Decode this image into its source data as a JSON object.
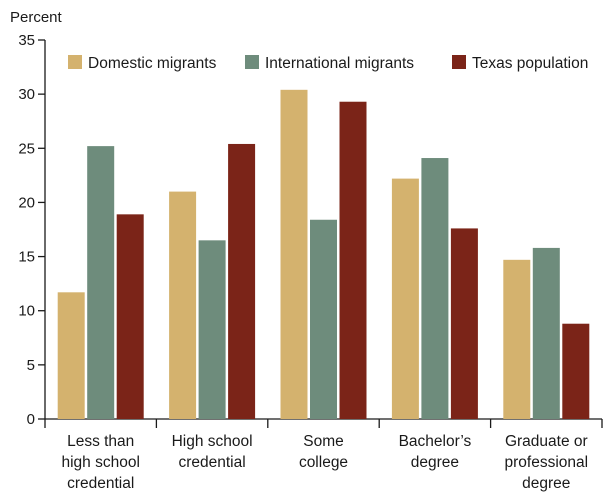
{
  "chart_data": {
    "type": "bar",
    "ylabel": "Percent",
    "ylim": [
      0,
      35
    ],
    "yticks": [
      0,
      5,
      10,
      15,
      20,
      25,
      30,
      35
    ],
    "grid": false,
    "legend_position": "top",
    "categories": [
      [
        "Less than",
        "high school",
        "credential"
      ],
      [
        "High school",
        "credential"
      ],
      [
        "Some",
        "college"
      ],
      [
        "Bachelor’s",
        "degree"
      ],
      [
        "Graduate or",
        "professional",
        "degree"
      ]
    ],
    "series": [
      {
        "name": "Domestic migrants",
        "color": "#d4b26e",
        "values": [
          11.7,
          21.0,
          30.4,
          22.2,
          14.7
        ]
      },
      {
        "name": "International migrants",
        "color": "#6e8c7c",
        "values": [
          25.2,
          16.5,
          18.4,
          24.1,
          15.8
        ]
      },
      {
        "name": "Texas population",
        "color": "#7b2418",
        "values": [
          18.9,
          25.4,
          29.3,
          17.6,
          8.8
        ]
      }
    ]
  }
}
